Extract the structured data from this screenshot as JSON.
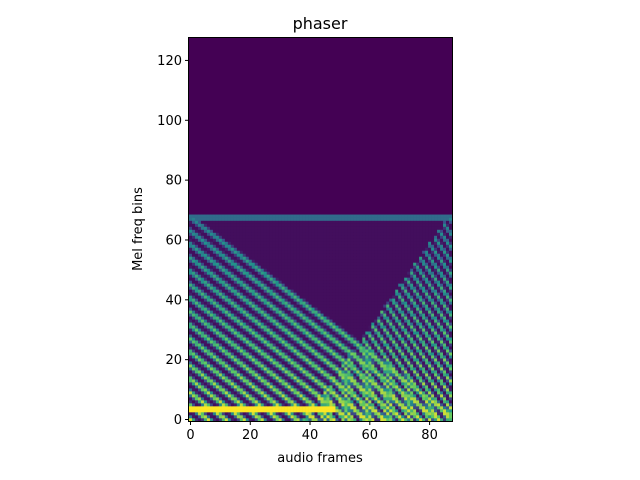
{
  "chart_data": {
    "type": "heatmap",
    "title": "phaser",
    "xlabel": "audio frames",
    "ylabel": "Mel freq bins",
    "xlim": [
      -0.5,
      87.5
    ],
    "ylim": [
      -0.5,
      127.5
    ],
    "x_ticks": [
      0,
      20,
      40,
      60,
      80
    ],
    "y_ticks": [
      0,
      20,
      40,
      60,
      80,
      100,
      120
    ],
    "colormap": "viridis",
    "grid": false,
    "legend": "none",
    "n_frames": 88,
    "n_bins": 128,
    "value_range": [
      0,
      1
    ],
    "features": {
      "constant_low_band": {
        "bins": [
          3,
          4
        ],
        "frames": [
          0,
          48
        ],
        "intensity": 1.0
      },
      "upper_cutoff": {
        "bin": 68,
        "frames": [
          0,
          87
        ]
      },
      "harmonic_spacing_bins": 4.5,
      "sweep_down": {
        "from": {
          "frame": 0,
          "bin": 68
        },
        "to": {
          "frame": 87,
          "bin": 2
        }
      },
      "sweep_up": {
        "from": {
          "frame": 40,
          "bin": 2
        },
        "to": {
          "frame": 87,
          "bin": 68
        }
      },
      "background_value": 0.0
    }
  },
  "colors": {
    "background": "#ffffff",
    "axis": "#000000",
    "empty": "#440154"
  }
}
